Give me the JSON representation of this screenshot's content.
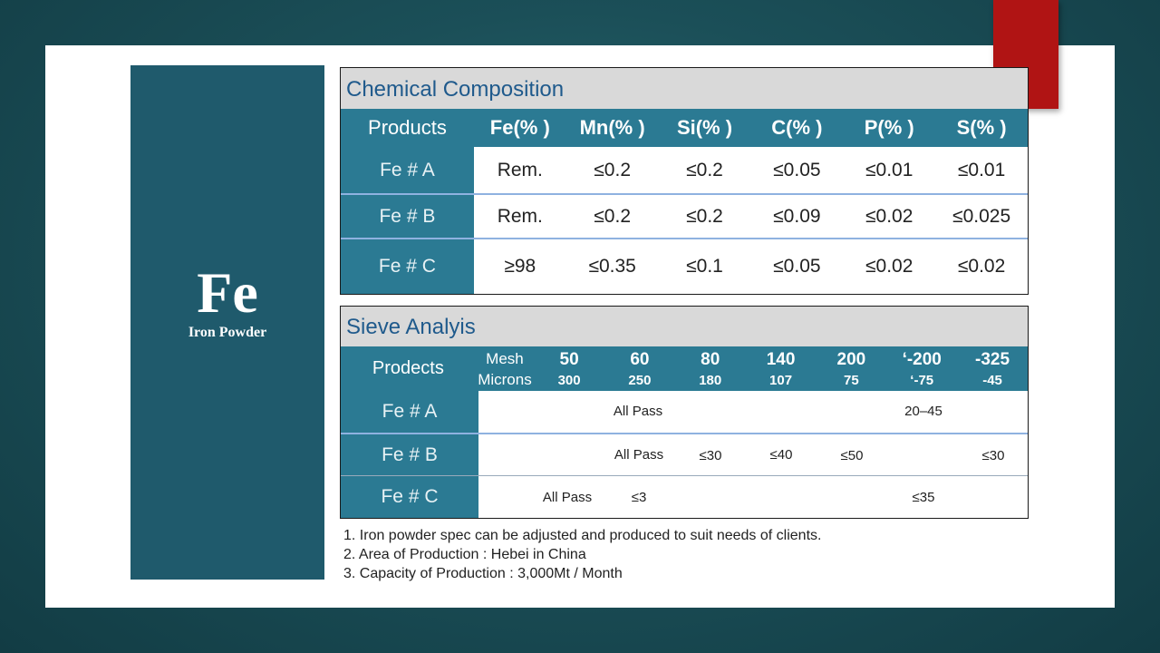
{
  "side_panel": {
    "symbol": "Fe",
    "name": "Iron Powder"
  },
  "chemical": {
    "title": "Chemical   Composition",
    "headers": [
      "Products",
      "Fe(% )",
      "Mn(% )",
      "Si(% )",
      "C(% )",
      "P(% )",
      "S(% )"
    ],
    "rows": [
      {
        "label": "Fe # A",
        "values": [
          "Rem.",
          "≤0.2",
          "≤0.2",
          "≤0.05",
          "≤0.01",
          "≤0.01"
        ]
      },
      {
        "label": "Fe # B",
        "values": [
          "Rem.",
          "≤0.2",
          "≤0.2",
          "≤0.09",
          "≤0.02",
          "≤0.025"
        ]
      },
      {
        "label": "Fe # C",
        "values": [
          "≥98",
          "≤0.35",
          "≤0.1",
          "≤0.05",
          "≤0.02",
          "≤0.02"
        ]
      }
    ]
  },
  "sieve": {
    "title": "Sieve   Analyis",
    "header_label": "Prodects",
    "mesh_label": "Mesh",
    "microns_label": "Microns",
    "columns": [
      {
        "mesh": "50",
        "microns": "300"
      },
      {
        "mesh": "60",
        "microns": "250"
      },
      {
        "mesh": "80",
        "microns": "180"
      },
      {
        "mesh": "140",
        "microns": "107"
      },
      {
        "mesh": "200",
        "microns": "75"
      },
      {
        "mesh": "‘-200",
        "microns": "‘-75"
      },
      {
        "mesh": "-325",
        "microns": "-45"
      }
    ],
    "rows": [
      {
        "label": "Fe # A",
        "cells": [
          "All Pass",
          "20–45"
        ]
      },
      {
        "label": "Fe # B",
        "cells": [
          "All Pass",
          "≤30",
          "≤40",
          "≤50",
          "≤30"
        ]
      },
      {
        "label": "Fe # C",
        "cells": [
          "All Pass",
          "≤3",
          "≤35"
        ]
      }
    ]
  },
  "notes": [
    "1.  Iron powder spec can be adjusted and produced to suit needs of clients.",
    "2.  Area of Production : Hebei in China",
    "3.  Capacity of Production  : 3,000Mt / Month"
  ],
  "colors": {
    "panel": "#1f5a6c",
    "header": "#2b7a93",
    "accent_red": "#b01414",
    "title_text": "#1f5a8c"
  }
}
